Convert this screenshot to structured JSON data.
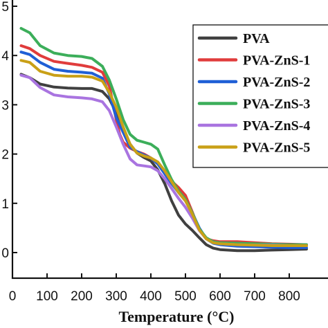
{
  "chart_data": {
    "type": "line",
    "title": "",
    "xlabel": "Temperature (°C)",
    "ylabel": "",
    "xlim": [
      0,
      850
    ],
    "ylim": [
      -0.6,
      5.0
    ],
    "x_ticks": [
      0,
      100,
      200,
      300,
      400,
      500,
      600,
      700,
      800
    ],
    "y_ticks": [
      {
        "value": 0,
        "label": "0"
      },
      {
        "value": 1,
        "label": "1"
      },
      {
        "value": 2,
        "label": "2"
      },
      {
        "value": 3,
        "label": "3"
      },
      {
        "value": 4,
        "label": "4"
      },
      {
        "value": 5,
        "label": "5"
      }
    ],
    "legend_position": "top-right",
    "series": [
      {
        "name": "PVA",
        "color": "#404040",
        "x": [
          25,
          50,
          80,
          120,
          160,
          200,
          230,
          260,
          280,
          300,
          320,
          340,
          360,
          380,
          400,
          420,
          440,
          460,
          480,
          500,
          520,
          540,
          560,
          580,
          600,
          650,
          700,
          750,
          800,
          850
        ],
        "y": [
          3.62,
          3.55,
          3.42,
          3.36,
          3.34,
          3.33,
          3.33,
          3.27,
          3.12,
          2.84,
          2.5,
          2.2,
          2.02,
          1.93,
          1.86,
          1.68,
          1.4,
          1.05,
          0.76,
          0.58,
          0.45,
          0.3,
          0.16,
          0.09,
          0.06,
          0.04,
          0.04,
          0.05,
          0.06,
          0.07
        ]
      },
      {
        "name": "PVA-ZnS-1",
        "color": "#e03c3c",
        "x": [
          25,
          50,
          80,
          120,
          160,
          200,
          230,
          260,
          280,
          300,
          310,
          320,
          340,
          360,
          380,
          400,
          420,
          440,
          460,
          480,
          500,
          520,
          540,
          560,
          580,
          600,
          650,
          700,
          750,
          800,
          850
        ],
        "y": [
          4.2,
          4.14,
          4.0,
          3.88,
          3.84,
          3.8,
          3.76,
          3.66,
          3.38,
          2.7,
          2.4,
          2.24,
          2.12,
          2.05,
          2.0,
          1.92,
          1.8,
          1.62,
          1.45,
          1.32,
          1.16,
          0.82,
          0.46,
          0.28,
          0.24,
          0.22,
          0.22,
          0.2,
          0.18,
          0.17,
          0.16
        ]
      },
      {
        "name": "PVA-ZnS-2",
        "color": "#1f5fd6",
        "x": [
          25,
          50,
          80,
          120,
          160,
          200,
          230,
          260,
          280,
          300,
          320,
          340,
          360,
          380,
          400,
          420,
          440,
          460,
          480,
          500,
          520,
          540,
          560,
          580,
          600,
          650,
          700,
          750,
          800,
          850
        ],
        "y": [
          4.07,
          4.02,
          3.86,
          3.72,
          3.68,
          3.66,
          3.64,
          3.54,
          3.22,
          2.74,
          2.44,
          2.14,
          2.05,
          1.98,
          1.92,
          1.8,
          1.6,
          1.4,
          1.22,
          1.05,
          0.8,
          0.5,
          0.28,
          0.19,
          0.16,
          0.13,
          0.12,
          0.11,
          0.1,
          0.1
        ]
      },
      {
        "name": "PVA-ZnS-3",
        "color": "#3cae5a",
        "x": [
          25,
          50,
          80,
          120,
          160,
          200,
          230,
          260,
          280,
          300,
          320,
          340,
          360,
          380,
          400,
          420,
          440,
          460,
          480,
          500,
          520,
          540,
          560,
          580,
          600,
          650,
          700,
          750,
          800,
          850
        ],
        "y": [
          4.55,
          4.46,
          4.2,
          4.05,
          4.0,
          3.98,
          3.94,
          3.78,
          3.5,
          3.12,
          2.7,
          2.4,
          2.28,
          2.24,
          2.2,
          2.1,
          1.78,
          1.48,
          1.25,
          1.08,
          0.8,
          0.48,
          0.3,
          0.22,
          0.2,
          0.19,
          0.18,
          0.17,
          0.16,
          0.16
        ]
      },
      {
        "name": "PVA-ZnS-4",
        "color": "#a974e0",
        "x": [
          25,
          50,
          80,
          120,
          160,
          200,
          230,
          260,
          280,
          300,
          320,
          340,
          360,
          380,
          400,
          420,
          440,
          460,
          480,
          500,
          520,
          540,
          560,
          580,
          600,
          650,
          700,
          750,
          800,
          850
        ],
        "y": [
          3.6,
          3.55,
          3.35,
          3.2,
          3.16,
          3.14,
          3.12,
          3.06,
          2.88,
          2.55,
          2.2,
          1.9,
          1.78,
          1.76,
          1.74,
          1.66,
          1.5,
          1.3,
          1.1,
          0.92,
          0.7,
          0.45,
          0.28,
          0.2,
          0.18,
          0.16,
          0.15,
          0.15,
          0.14,
          0.14
        ]
      },
      {
        "name": "PVA-ZnS-5",
        "color": "#c9a017",
        "x": [
          25,
          50,
          80,
          120,
          160,
          200,
          230,
          260,
          280,
          300,
          320,
          340,
          360,
          380,
          400,
          420,
          440,
          460,
          480,
          500,
          520,
          540,
          560,
          580,
          600,
          650,
          700,
          750,
          800,
          850
        ],
        "y": [
          3.9,
          3.86,
          3.68,
          3.6,
          3.58,
          3.58,
          3.56,
          3.48,
          3.25,
          2.95,
          2.55,
          2.2,
          2.02,
          1.96,
          1.92,
          1.84,
          1.66,
          1.44,
          1.22,
          1.05,
          0.78,
          0.46,
          0.28,
          0.2,
          0.18,
          0.16,
          0.15,
          0.14,
          0.14,
          0.14
        ]
      }
    ]
  }
}
